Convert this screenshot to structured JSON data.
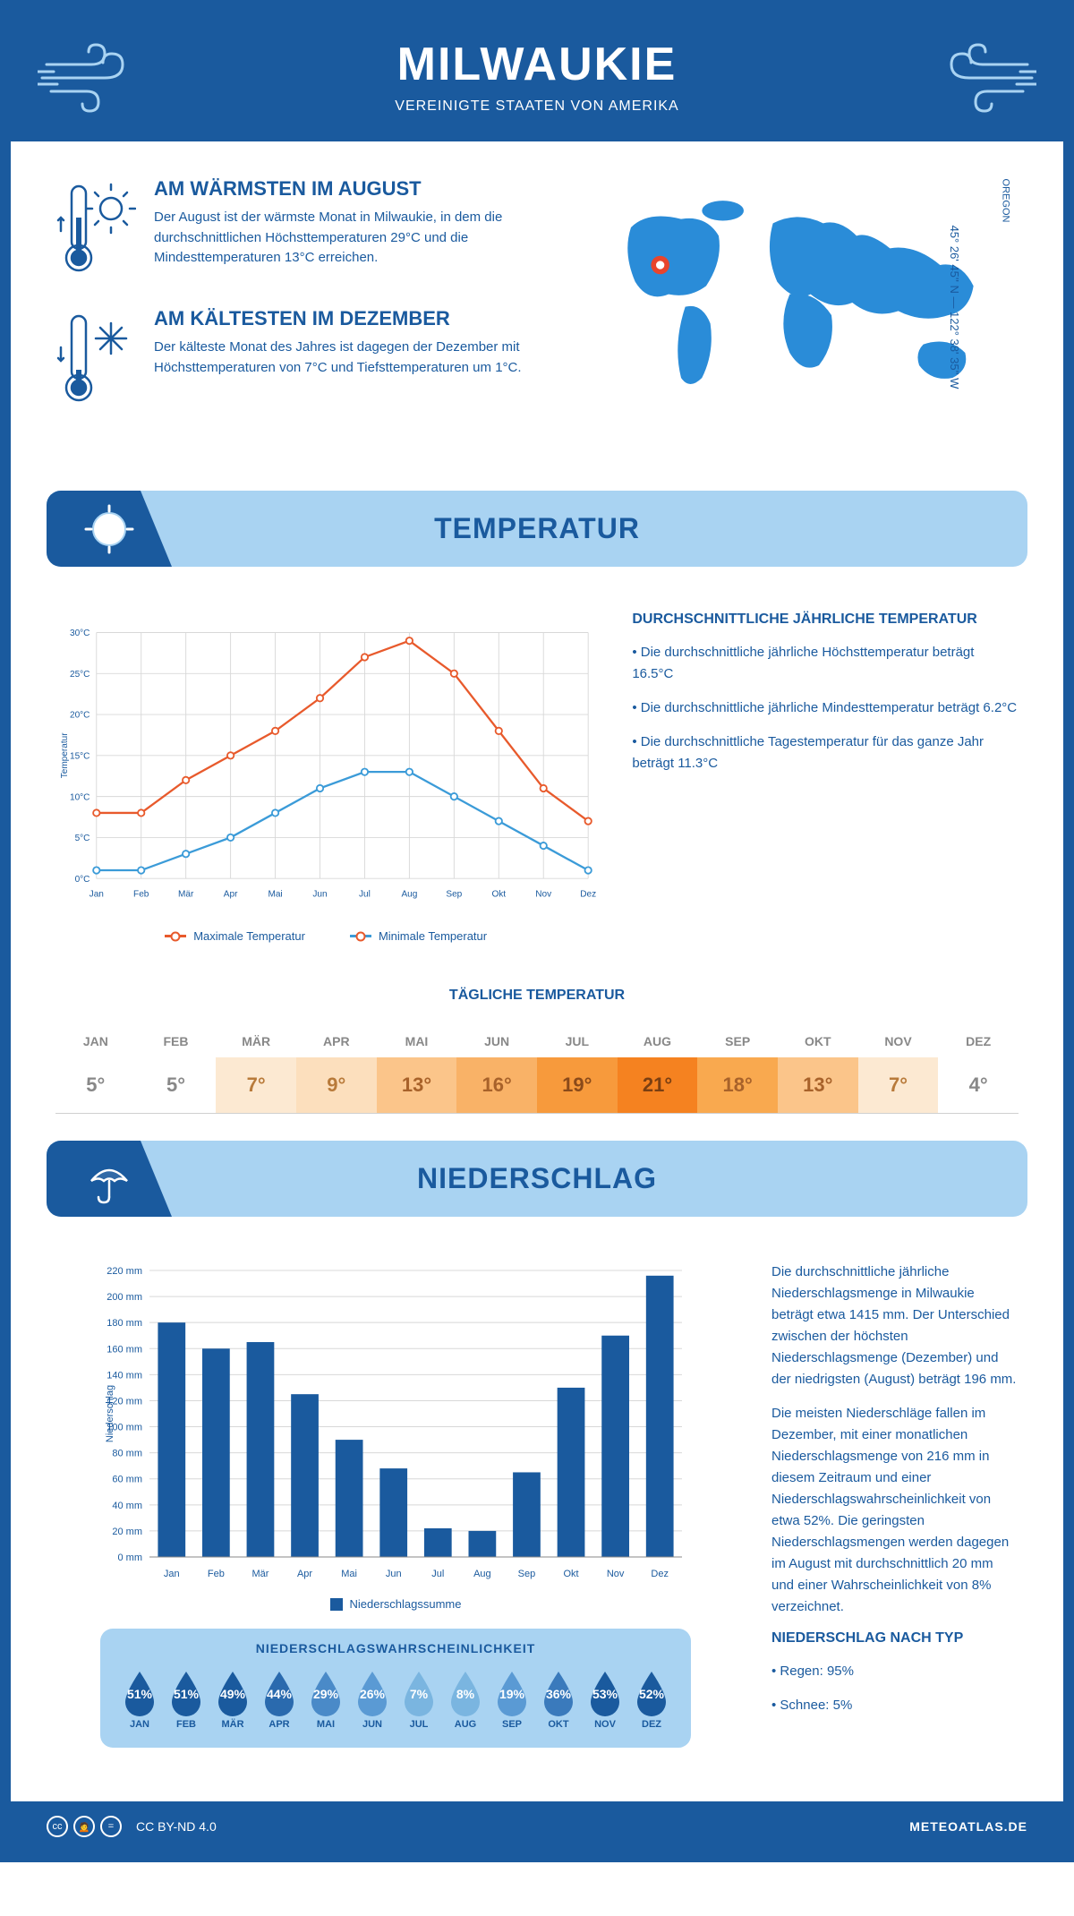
{
  "colors": {
    "primary": "#1a5a9e",
    "light_blue": "#a9d3f2",
    "orange_line": "#e85a2c",
    "blue_line": "#3b9bd8",
    "bar_fill": "#1a5a9e"
  },
  "header": {
    "title": "MILWAUKIE",
    "subtitle": "VEREINIGTE STAATEN VON AMERIKA"
  },
  "location": {
    "region": "OREGON",
    "coords": "45° 26' 45'' N — 122° 38' 35'' W"
  },
  "info": {
    "warm_title": "AM WÄRMSTEN IM AUGUST",
    "warm_text": "Der August ist der wärmste Monat in Milwaukie, in dem die durchschnittlichen Höchsttemperaturen 29°C und die Mindesttemperaturen 13°C erreichen.",
    "cold_title": "AM KÄLTESTEN IM DEZEMBER",
    "cold_text": "Der kälteste Monat des Jahres ist dagegen der Dezember mit Höchsttemperaturen von 7°C und Tiefsttemperaturen um 1°C."
  },
  "temp_section": {
    "banner": "TEMPERATUR",
    "chart": {
      "months": [
        "Jan",
        "Feb",
        "Mär",
        "Apr",
        "Mai",
        "Jun",
        "Jul",
        "Aug",
        "Sep",
        "Okt",
        "Nov",
        "Dez"
      ],
      "max": [
        8,
        8,
        12,
        15,
        18,
        22,
        27,
        29,
        25,
        18,
        11,
        7
      ],
      "min": [
        1,
        1,
        3,
        5,
        8,
        11,
        13,
        13,
        10,
        7,
        4,
        1
      ],
      "y_ticks": [
        0,
        5,
        10,
        15,
        20,
        25,
        30
      ],
      "y_label": "Temperatur",
      "legend_max": "Maximale Temperatur",
      "legend_min": "Minimale Temperatur"
    },
    "side": {
      "title": "DURCHSCHNITTLICHE JÄHRLICHE TEMPERATUR",
      "bullets": [
        "• Die durchschnittliche jährliche Höchsttemperatur beträgt 16.5°C",
        "• Die durchschnittliche jährliche Mindesttemperatur beträgt 6.2°C",
        "• Die durchschnittliche Tagestemperatur für das ganze Jahr beträgt 11.3°C"
      ]
    },
    "daily_title": "TÄGLICHE TEMPERATUR",
    "daily": {
      "months": [
        "JAN",
        "FEB",
        "MÄR",
        "APR",
        "MAI",
        "JUN",
        "JUL",
        "AUG",
        "SEP",
        "OKT",
        "NOV",
        "DEZ"
      ],
      "values": [
        "5°",
        "5°",
        "7°",
        "9°",
        "13°",
        "16°",
        "19°",
        "21°",
        "18°",
        "13°",
        "7°",
        "4°"
      ],
      "bg_colors": [
        "#ffffff",
        "#ffffff",
        "#fce9d2",
        "#fcdfbd",
        "#fbc58a",
        "#f9b267",
        "#f79a3c",
        "#f58220",
        "#f9a94f",
        "#fbc58a",
        "#fce9d2",
        "#ffffff"
      ],
      "text_colors": [
        "#888",
        "#888",
        "#b87a3a",
        "#b87a3a",
        "#a8622a",
        "#a8622a",
        "#8a4a1a",
        "#7a3f12",
        "#a8622a",
        "#a8622a",
        "#b87a3a",
        "#888"
      ]
    }
  },
  "precip_section": {
    "banner": "NIEDERSCHLAG",
    "chart": {
      "months": [
        "Jan",
        "Feb",
        "Mär",
        "Apr",
        "Mai",
        "Jun",
        "Jul",
        "Aug",
        "Sep",
        "Okt",
        "Nov",
        "Dez"
      ],
      "values": [
        180,
        160,
        165,
        125,
        90,
        68,
        22,
        20,
        65,
        130,
        170,
        216
      ],
      "y_ticks": [
        0,
        20,
        40,
        60,
        80,
        100,
        120,
        140,
        160,
        180,
        200,
        220
      ],
      "y_label": "Niederschlag",
      "legend": "Niederschlagssumme"
    },
    "side_paragraphs": [
      "Die durchschnittliche jährliche Niederschlagsmenge in Milwaukie beträgt etwa 1415 mm. Der Unterschied zwischen der höchsten Niederschlagsmenge (Dezember) und der niedrigsten (August) beträgt 196 mm.",
      "Die meisten Niederschläge fallen im Dezember, mit einer monatlichen Niederschlagsmenge von 216 mm in diesem Zeitraum und einer Niederschlagswahrscheinlichkeit von etwa 52%. Die geringsten Niederschlagsmengen werden dagegen im August mit durchschnittlich 20 mm und einer Wahrscheinlichkeit von 8% verzeichnet."
    ],
    "type_title": "NIEDERSCHLAG NACH TYP",
    "type_bullets": [
      "• Regen: 95%",
      "• Schnee: 5%"
    ],
    "prob_title": "NIEDERSCHLAGSWAHRSCHEINLICHKEIT",
    "prob": {
      "months": [
        "JAN",
        "FEB",
        "MÄR",
        "APR",
        "MAI",
        "JUN",
        "JUL",
        "AUG",
        "SEP",
        "OKT",
        "NOV",
        "DEZ"
      ],
      "pct": [
        "51%",
        "51%",
        "49%",
        "44%",
        "29%",
        "26%",
        "7%",
        "8%",
        "19%",
        "36%",
        "53%",
        "52%"
      ],
      "colors": [
        "#1a5a9e",
        "#1a5a9e",
        "#1a5a9e",
        "#2a6aae",
        "#4a8ac8",
        "#5a9ad4",
        "#7ab5e0",
        "#7ab5e0",
        "#5a9ad4",
        "#3a7abc",
        "#1a5a9e",
        "#1a5a9e"
      ]
    }
  },
  "footer": {
    "license": "CC BY-ND 4.0",
    "site": "METEOATLAS.DE"
  }
}
